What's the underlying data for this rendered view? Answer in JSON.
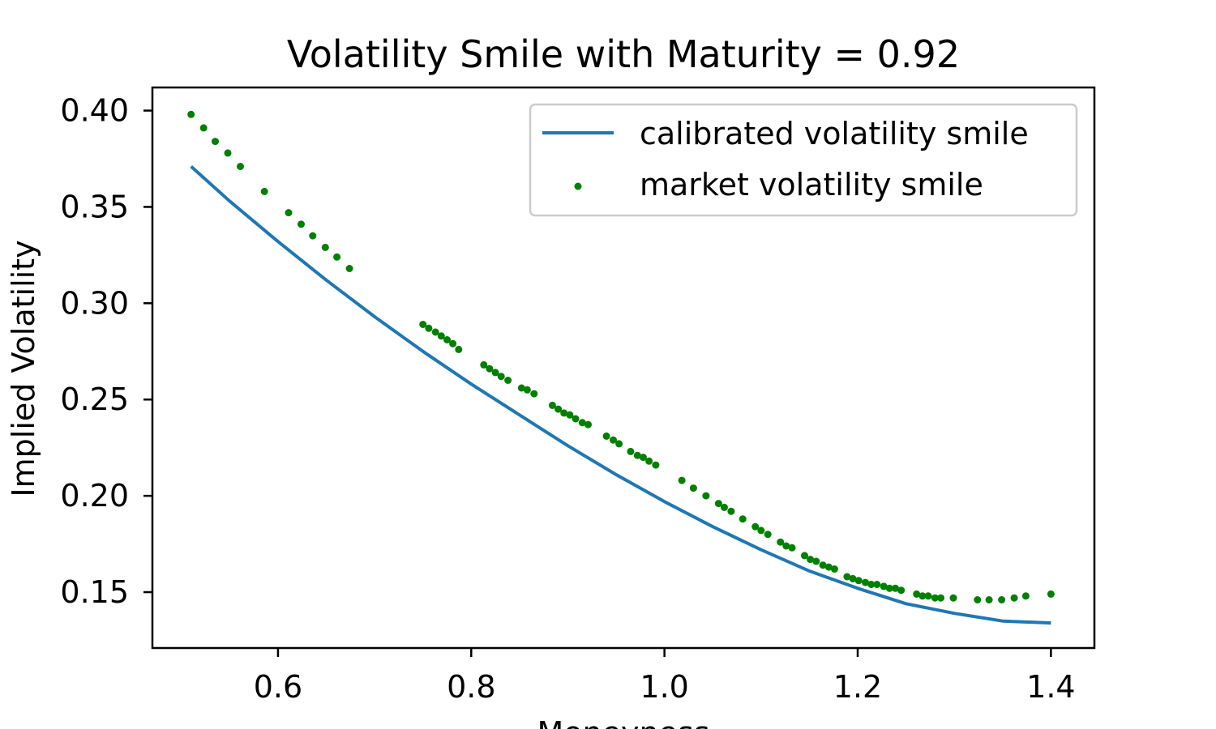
{
  "chart_data": {
    "type": "line+scatter",
    "title": "Volatility Smile with Maturity = 0.92",
    "xlabel": "Moneyness",
    "ylabel": "Implied Volatility",
    "xlim": [
      0.47,
      1.445
    ],
    "ylim": [
      0.121,
      0.412
    ],
    "xticks": [
      0.6,
      0.8,
      1.0,
      1.2,
      1.4
    ],
    "xtick_labels": [
      "0.6",
      "0.8",
      "1.0",
      "1.2",
      "1.4"
    ],
    "yticks": [
      0.15,
      0.2,
      0.25,
      0.3,
      0.35,
      0.4
    ],
    "ytick_labels": [
      "0.15",
      "0.20",
      "0.25",
      "0.30",
      "0.35",
      "0.40"
    ],
    "grid": false,
    "legend": {
      "position": "top-right",
      "entries": [
        "calibrated volatility smile",
        "market volatility smile"
      ]
    },
    "series": [
      {
        "name": "calibrated volatility smile",
        "kind": "line",
        "color": "#1f77b4",
        "x": [
          0.51,
          0.55,
          0.6,
          0.65,
          0.7,
          0.75,
          0.8,
          0.85,
          0.9,
          0.95,
          1.0,
          1.05,
          1.1,
          1.15,
          1.2,
          1.25,
          1.3,
          1.35,
          1.4
        ],
        "y": [
          0.371,
          0.353,
          0.332,
          0.312,
          0.293,
          0.275,
          0.258,
          0.242,
          0.226,
          0.211,
          0.197,
          0.184,
          0.172,
          0.161,
          0.152,
          0.144,
          0.139,
          0.135,
          0.134
        ]
      },
      {
        "name": "market volatility smile",
        "kind": "scatter",
        "color": "#008000",
        "x": [
          0.51,
          0.523,
          0.535,
          0.548,
          0.561,
          0.586,
          0.611,
          0.624,
          0.636,
          0.649,
          0.661,
          0.674,
          0.75,
          0.756,
          0.763,
          0.769,
          0.775,
          0.781,
          0.787,
          0.813,
          0.819,
          0.825,
          0.831,
          0.838,
          0.852,
          0.858,
          0.865,
          0.884,
          0.89,
          0.896,
          0.902,
          0.908,
          0.915,
          0.921,
          0.94,
          0.947,
          0.953,
          0.965,
          0.972,
          0.978,
          0.984,
          0.991,
          1.018,
          1.03,
          1.043,
          1.056,
          1.062,
          1.069,
          1.081,
          1.094,
          1.1,
          1.107,
          1.12,
          1.126,
          1.132,
          1.145,
          1.151,
          1.157,
          1.164,
          1.17,
          1.176,
          1.189,
          1.195,
          1.201,
          1.208,
          1.214,
          1.22,
          1.227,
          1.233,
          1.239,
          1.245,
          1.261,
          1.267,
          1.273,
          1.28,
          1.286,
          1.299,
          1.324,
          1.336,
          1.349,
          1.362,
          1.374,
          1.4
        ],
        "y": [
          0.398,
          0.391,
          0.384,
          0.378,
          0.371,
          0.358,
          0.347,
          0.341,
          0.335,
          0.329,
          0.324,
          0.318,
          0.289,
          0.287,
          0.285,
          0.283,
          0.281,
          0.279,
          0.276,
          0.268,
          0.266,
          0.264,
          0.262,
          0.26,
          0.256,
          0.255,
          0.253,
          0.247,
          0.245,
          0.243,
          0.242,
          0.24,
          0.238,
          0.237,
          0.231,
          0.229,
          0.227,
          0.223,
          0.221,
          0.22,
          0.218,
          0.216,
          0.208,
          0.204,
          0.2,
          0.196,
          0.194,
          0.192,
          0.188,
          0.184,
          0.182,
          0.18,
          0.176,
          0.174,
          0.173,
          0.169,
          0.167,
          0.166,
          0.164,
          0.163,
          0.162,
          0.158,
          0.157,
          0.156,
          0.155,
          0.154,
          0.154,
          0.153,
          0.152,
          0.152,
          0.151,
          0.149,
          0.148,
          0.148,
          0.147,
          0.147,
          0.147,
          0.146,
          0.146,
          0.146,
          0.147,
          0.148,
          0.149
        ]
      }
    ]
  }
}
